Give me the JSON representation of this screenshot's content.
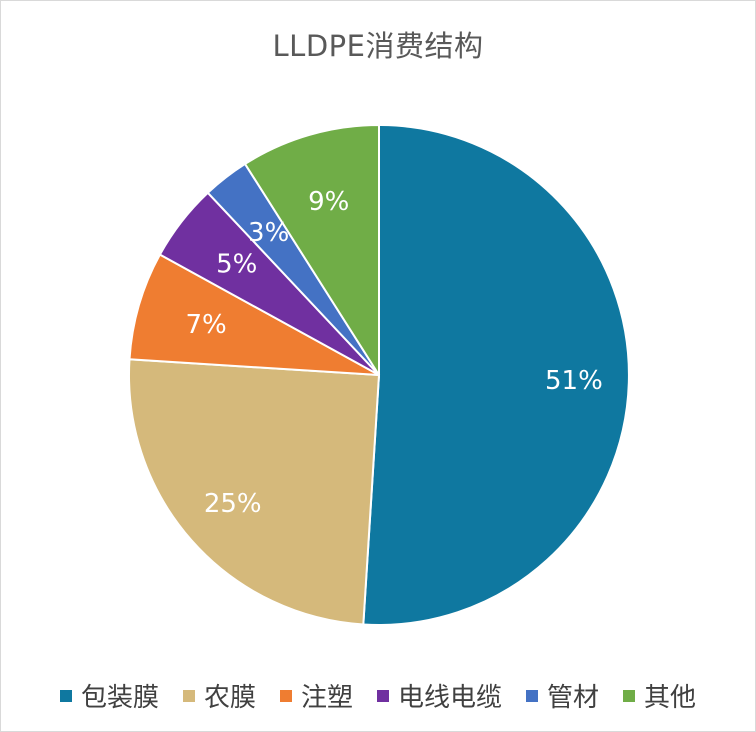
{
  "chart_data": {
    "type": "pie",
    "title": "LLDPE消费结构",
    "categories": [
      "包装膜",
      "农膜",
      "注塑",
      "电线电缆",
      "管材",
      "其他"
    ],
    "values": [
      51,
      25,
      7,
      5,
      3,
      9
    ],
    "labels": [
      "51%",
      "25%",
      "7%",
      "5%",
      "3%",
      "9%"
    ],
    "colors": [
      "#0f78a0",
      "#d5b97b",
      "#ef7d31",
      "#7030a0",
      "#4472c4",
      "#70ad47"
    ],
    "label_colors": [
      "#ffffff",
      "#ffffff",
      "#ffffff",
      "#ffffff",
      "#ffffff",
      "#ffffff"
    ],
    "start_angle_deg": 0,
    "direction": "clockwise",
    "legend_position": "bottom"
  }
}
